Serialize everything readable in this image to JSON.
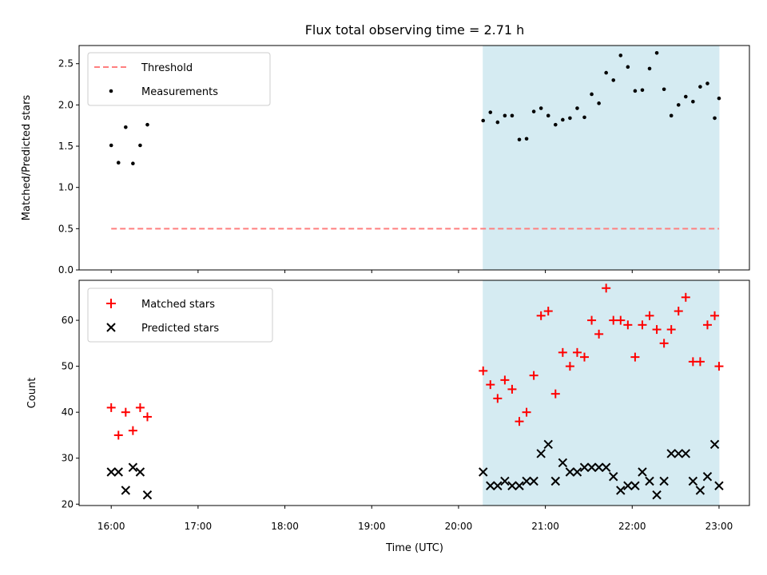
{
  "title": "Flux total observing time = 2.71 h",
  "xlabel": "Time (UTC)",
  "colors": {
    "threshold": "#ff7f7f",
    "measurement": "#000000",
    "matched": "#ff0000",
    "predicted": "#000000",
    "shade": "#add8e6"
  },
  "chart_data": [
    {
      "type": "scatter",
      "panel": "top",
      "ylabel": "Matched/Predicted stars",
      "ylim": [
        0,
        2.72
      ],
      "yticks": [
        0.0,
        0.5,
        1.0,
        1.5,
        2.0,
        2.5
      ],
      "ytick_labels": [
        "0.0",
        "0.5",
        "1.0",
        "1.5",
        "2.0",
        "2.5"
      ],
      "xlim_hours": [
        15.63,
        23.35
      ],
      "legend": {
        "placement": "top-left",
        "entries": [
          "Threshold",
          "Measurements"
        ]
      },
      "shaded_span": [
        "20:17",
        "23:00"
      ],
      "threshold": {
        "name": "Threshold",
        "value": 0.5,
        "x_start": "16:00",
        "x_end": "23:00"
      },
      "series": [
        {
          "name": "Measurements",
          "x": [
            "16:00",
            "16:05",
            "16:10",
            "16:15",
            "16:20",
            "16:25",
            "20:17",
            "20:22",
            "20:27",
            "20:32",
            "20:37",
            "20:42",
            "20:47",
            "20:52",
            "20:57",
            "21:02",
            "21:07",
            "21:12",
            "21:17",
            "21:22",
            "21:27",
            "21:32",
            "21:37",
            "21:42",
            "21:47",
            "21:52",
            "21:57",
            "22:02",
            "22:07",
            "22:12",
            "22:17",
            "22:22",
            "22:27",
            "22:32",
            "22:37",
            "22:42",
            "22:47",
            "22:52",
            "22:57",
            "23:00"
          ],
          "y": [
            1.51,
            1.3,
            1.73,
            1.29,
            1.51,
            1.76,
            1.81,
            1.91,
            1.79,
            1.87,
            1.87,
            1.58,
            1.59,
            1.92,
            1.96,
            1.87,
            1.76,
            1.82,
            1.84,
            1.96,
            1.85,
            2.13,
            2.02,
            2.39,
            2.3,
            2.6,
            2.46,
            2.17,
            2.18,
            2.44,
            2.63,
            2.19,
            1.87,
            2.0,
            2.1,
            2.04,
            2.22,
            2.26,
            1.84,
            2.08
          ]
        }
      ]
    },
    {
      "type": "scatter",
      "panel": "bottom",
      "ylabel": "Count",
      "ylim": [
        19.7,
        68.7
      ],
      "yticks": [
        20,
        30,
        40,
        50,
        60
      ],
      "ytick_labels": [
        "20",
        "30",
        "40",
        "50",
        "60"
      ],
      "xlim_hours": [
        15.63,
        23.35
      ],
      "xticks": [
        "16:00",
        "17:00",
        "18:00",
        "19:00",
        "20:00",
        "21:00",
        "22:00",
        "23:00"
      ],
      "legend": {
        "placement": "top-left",
        "entries": [
          "Matched stars",
          "Predicted stars"
        ]
      },
      "shaded_span": [
        "20:17",
        "23:00"
      ],
      "series": [
        {
          "name": "Matched stars",
          "marker": "+",
          "x": [
            "16:00",
            "16:05",
            "16:10",
            "16:15",
            "16:20",
            "16:25",
            "20:17",
            "20:22",
            "20:27",
            "20:32",
            "20:37",
            "20:42",
            "20:47",
            "20:52",
            "20:57",
            "21:02",
            "21:07",
            "21:12",
            "21:17",
            "21:22",
            "21:27",
            "21:32",
            "21:37",
            "21:42",
            "21:47",
            "21:52",
            "21:57",
            "22:02",
            "22:07",
            "22:12",
            "22:17",
            "22:22",
            "22:27",
            "22:32",
            "22:37",
            "22:42",
            "22:47",
            "22:52",
            "22:57",
            "23:00"
          ],
          "y": [
            41,
            35,
            40,
            36,
            41,
            39,
            49,
            46,
            43,
            47,
            45,
            38,
            40,
            48,
            61,
            62,
            44,
            53,
            50,
            53,
            52,
            60,
            57,
            67,
            60,
            60,
            59,
            52,
            59,
            61,
            58,
            55,
            58,
            62,
            65,
            51,
            51,
            59,
            61,
            50
          ]
        },
        {
          "name": "Predicted stars",
          "marker": "x",
          "x": [
            "16:00",
            "16:05",
            "16:10",
            "16:15",
            "16:20",
            "16:25",
            "20:17",
            "20:22",
            "20:27",
            "20:32",
            "20:37",
            "20:42",
            "20:47",
            "20:52",
            "20:57",
            "21:02",
            "21:07",
            "21:12",
            "21:17",
            "21:22",
            "21:27",
            "21:32",
            "21:37",
            "21:42",
            "21:47",
            "21:52",
            "21:57",
            "22:02",
            "22:07",
            "22:12",
            "22:17",
            "22:22",
            "22:27",
            "22:32",
            "22:37",
            "22:42",
            "22:47",
            "22:52",
            "22:57",
            "23:00"
          ],
          "y": [
            27,
            27,
            23,
            28,
            27,
            22,
            27,
            24,
            24,
            25,
            24,
            24,
            25,
            25,
            31,
            33,
            25,
            29,
            27,
            27,
            28,
            28,
            28,
            28,
            26,
            23,
            24,
            24,
            27,
            25,
            22,
            25,
            31,
            31,
            31,
            25,
            23,
            26,
            33,
            24
          ]
        }
      ]
    }
  ]
}
